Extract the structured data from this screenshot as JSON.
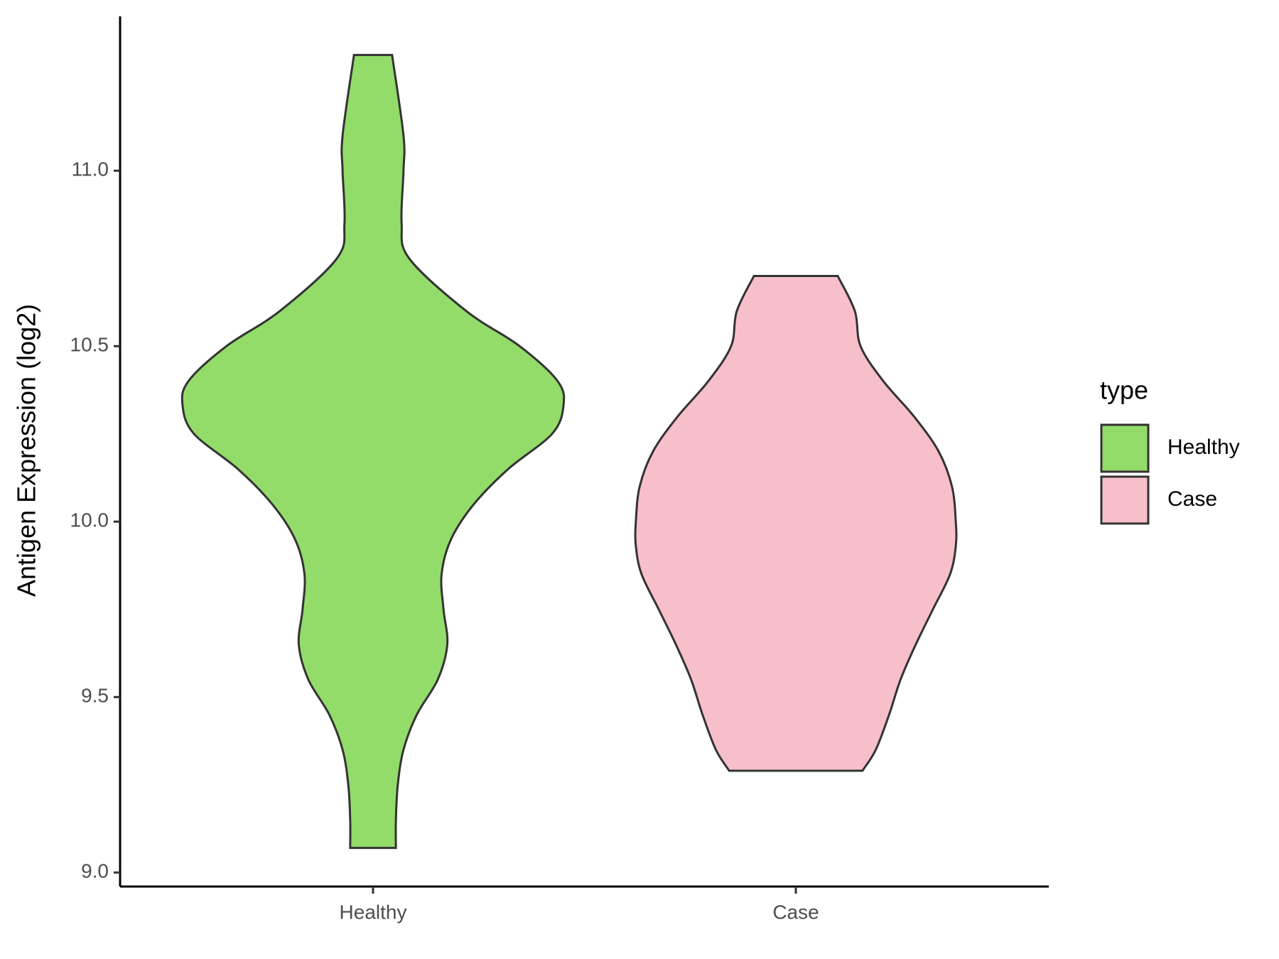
{
  "chart_data": {
    "type": "violin",
    "y_label": "Antigen Expression (log2)",
    "categories": [
      "Healthy",
      "Case"
    ],
    "ylim": [
      8.96,
      11.44
    ],
    "yticks": [
      {
        "value": 9.0,
        "label": "9.0"
      },
      {
        "value": 9.5,
        "label": "9.5"
      },
      {
        "value": 10.0,
        "label": "10.0"
      },
      {
        "value": 10.5,
        "label": "10.5"
      },
      {
        "value": 11.0,
        "label": "11.0"
      }
    ],
    "legend_title": "type",
    "legend_position": "right",
    "series": [
      {
        "name": "Healthy",
        "color": "#93dc6a",
        "y": [
          11.33,
          11.1,
          11.0,
          10.85,
          10.75,
          10.6,
          10.5,
          10.4,
          10.33,
          10.25,
          10.15,
          10.05,
          9.95,
          9.85,
          9.75,
          9.65,
          9.55,
          9.45,
          9.35,
          9.25,
          9.15,
          9.07
        ],
        "width": [
          0.1,
          0.16,
          0.16,
          0.15,
          0.19,
          0.49,
          0.77,
          0.97,
          1.0,
          0.94,
          0.71,
          0.53,
          0.41,
          0.36,
          0.37,
          0.39,
          0.34,
          0.23,
          0.16,
          0.13,
          0.12,
          0.12
        ]
      },
      {
        "name": "Case",
        "color": "#f7bfca",
        "y": [
          10.7,
          10.6,
          10.5,
          10.4,
          10.3,
          10.2,
          10.1,
          10.0,
          9.93,
          9.85,
          9.75,
          9.65,
          9.55,
          9.45,
          9.35,
          9.29
        ],
        "width": [
          0.22,
          0.31,
          0.34,
          0.46,
          0.62,
          0.75,
          0.82,
          0.84,
          0.84,
          0.81,
          0.72,
          0.63,
          0.55,
          0.49,
          0.42,
          0.35
        ]
      }
    ]
  }
}
